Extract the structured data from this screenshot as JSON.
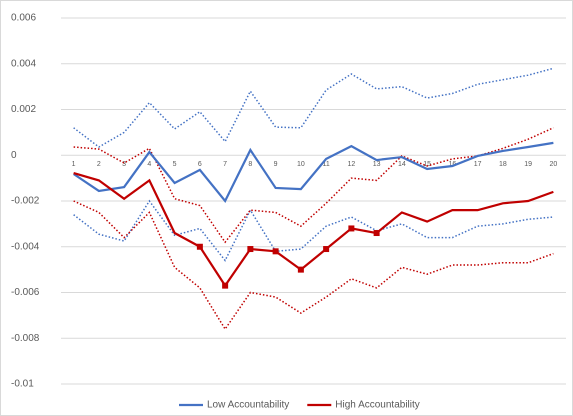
{
  "chart_data": {
    "type": "line",
    "categories": [
      "1",
      "2",
      "3",
      "4",
      "5",
      "6",
      "7",
      "8",
      "9",
      "10",
      "11",
      "12",
      "13",
      "14",
      "15",
      "16",
      "17",
      "18",
      "19",
      "20"
    ],
    "ylim": [
      -0.01,
      0.006
    ],
    "yticks": [
      -0.01,
      -0.008,
      -0.006,
      -0.004,
      -0.002,
      0,
      0.002,
      0.004,
      0.006
    ],
    "grid": true,
    "legend": "bottom",
    "series": [
      {
        "color": "#4472c4",
        "style": "dotted",
        "values": [
          0.0012,
          0.00036,
          0.001,
          0.0023,
          0.00115,
          0.0019,
          0.0006,
          0.0028,
          0.00123,
          0.0012,
          0.00285,
          0.00355,
          0.0029,
          0.003,
          0.0025,
          0.0027,
          0.0031,
          0.0033,
          0.0035,
          0.0038
        ]
      },
      {
        "color": "#4472c4",
        "style": "dotted",
        "values": [
          -0.0026,
          -0.00345,
          -0.00375,
          -0.002,
          -0.0035,
          -0.0032,
          -0.0046,
          -0.0024,
          -0.0042,
          -0.0041,
          -0.0031,
          -0.0027,
          -0.0033,
          -0.003,
          -0.0036,
          -0.0036,
          -0.0031,
          -0.003,
          -0.0028,
          -0.0027
        ]
      },
      {
        "color": "#c00000",
        "style": "dotted",
        "values": [
          0.00036,
          0.00027,
          -0.00034,
          0.0003,
          -0.0019,
          -0.0022,
          -0.0038,
          -0.0024,
          -0.0025,
          -0.0031,
          -0.0021,
          -0.001,
          -0.0011,
          -3e-05,
          -0.00047,
          -0.00016,
          -3e-05,
          0.0003,
          0.0007,
          0.0012
        ]
      },
      {
        "color": "#c00000",
        "style": "dotted",
        "values": [
          -0.002,
          -0.0025,
          -0.0036,
          -0.0025,
          -0.0049,
          -0.0058,
          -0.0076,
          -0.006,
          -0.0062,
          -0.0069,
          -0.0062,
          -0.0054,
          -0.0058,
          -0.0049,
          -0.0052,
          -0.0048,
          -0.0048,
          -0.0047,
          -0.0047,
          -0.0043
        ]
      },
      {
        "name": "Low Accountability",
        "color": "#4472c4",
        "style": "solid",
        "values": [
          -0.00082,
          -0.00156,
          -0.00139,
          0.00014,
          -0.00121,
          -0.00064,
          -0.002,
          0.00023,
          -0.00143,
          -0.00148,
          -0.00016,
          0.0004,
          -0.00021,
          -8e-05,
          -0.0006,
          -0.00047,
          -3e-05,
          0.00019,
          0.00036,
          0.00054
        ]
      },
      {
        "name": "High Accountability",
        "color": "#c00000",
        "style": "solid",
        "marker": "square",
        "marker_points": [
          5,
          6,
          7,
          8,
          9,
          10,
          11,
          12
        ],
        "values": [
          -0.00078,
          -0.0011,
          -0.0019,
          -0.0011,
          -0.0034,
          -0.004,
          -0.0057,
          -0.0041,
          -0.0042,
          -0.005,
          -0.0041,
          -0.0032,
          -0.0034,
          -0.0025,
          -0.0029,
          -0.0024,
          -0.0024,
          -0.0021,
          -0.002,
          -0.0016
        ]
      }
    ]
  }
}
